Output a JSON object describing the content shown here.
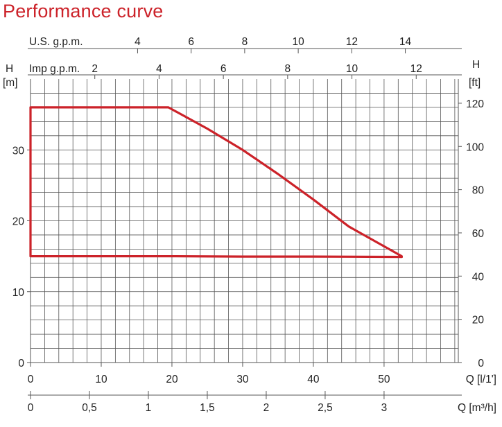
{
  "title": "Performance curve",
  "chart_data": {
    "type": "line",
    "title": "Performance curve",
    "colors": {
      "curve": "#cc2229",
      "grid": "#555555",
      "text": "#222222"
    },
    "grid": true,
    "axes": {
      "y_left": {
        "label_top": "H",
        "label_unit": "[m]",
        "range": [
          0,
          40
        ],
        "ticks": [
          0,
          10,
          20,
          30
        ]
      },
      "y_right": {
        "label_top": "H",
        "label_unit": "[ft]",
        "range": [
          0,
          131.2
        ],
        "ticks": [
          0,
          20,
          40,
          60,
          80,
          100,
          120
        ]
      },
      "x_bottom_ls": {
        "label": "Q [l/1']",
        "range": [
          0,
          60.5
        ],
        "ticks": [
          0,
          10,
          20,
          30,
          40,
          50
        ],
        "tick_labels": [
          "0",
          "10",
          "20",
          "30",
          "40",
          "50"
        ]
      },
      "x_bottom_m3h": {
        "label": "Q [m³/h]",
        "range": [
          0,
          3.63
        ],
        "ticks": [
          0,
          0.5,
          1,
          1.5,
          2,
          2.5,
          3
        ],
        "tick_labels": [
          "0",
          "0,5",
          "1",
          "1,5",
          "2",
          "2,5",
          "3"
        ]
      },
      "x_top_usgpm": {
        "label": "U.S. g.p.m.",
        "range": [
          0,
          15.98
        ],
        "ticks": [
          4,
          6,
          8,
          10,
          12,
          14
        ],
        "tick_labels": [
          "4",
          "6",
          "8",
          "10",
          "12",
          "14"
        ]
      },
      "x_top_impgpm": {
        "label": "Imp g.p.m.",
        "range": [
          0,
          13.31
        ],
        "ticks": [
          2,
          4,
          6,
          8,
          10,
          12
        ],
        "tick_labels": [
          "2",
          "4",
          "6",
          "8",
          "10",
          "12"
        ]
      }
    },
    "series": [
      {
        "x_units": "l/min",
        "x": [
          0,
          0,
          19.5,
          25,
          30,
          35,
          40,
          45,
          52.5,
          52.5,
          40,
          30,
          20,
          10,
          0
        ],
        "y": [
          15,
          36,
          36,
          33,
          30,
          26.6,
          23,
          19.2,
          15,
          14.9,
          14.95,
          14.95,
          15,
          15,
          15
        ]
      }
    ]
  }
}
